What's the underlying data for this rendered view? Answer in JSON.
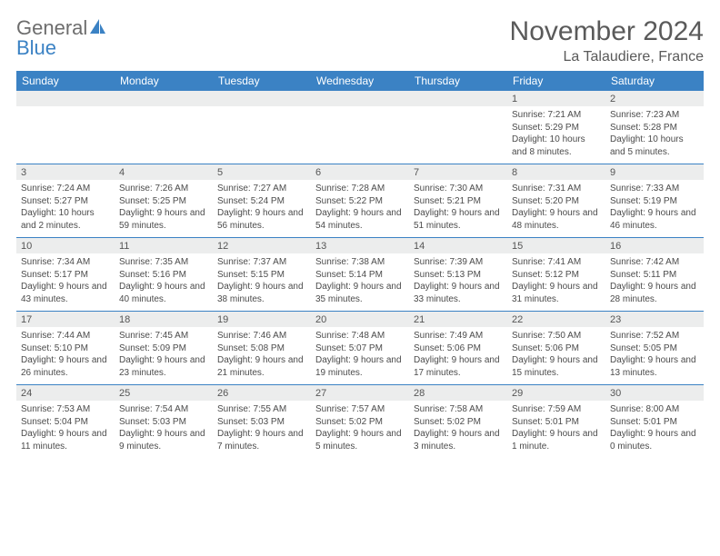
{
  "brand": {
    "word1": "General",
    "word2": "Blue"
  },
  "title": "November 2024",
  "location": "La Talaudiere, France",
  "colors": {
    "header_bg": "#3b82c4",
    "header_fg": "#ffffff",
    "strip_bg": "#eceded",
    "border": "#3b82c4",
    "text": "#4b4b4b",
    "title": "#5a5a5a"
  },
  "day_headers": [
    "Sunday",
    "Monday",
    "Tuesday",
    "Wednesday",
    "Thursday",
    "Friday",
    "Saturday"
  ],
  "weeks": [
    [
      {
        "date": "",
        "sunrise": "",
        "sunset": "",
        "daylight": ""
      },
      {
        "date": "",
        "sunrise": "",
        "sunset": "",
        "daylight": ""
      },
      {
        "date": "",
        "sunrise": "",
        "sunset": "",
        "daylight": ""
      },
      {
        "date": "",
        "sunrise": "",
        "sunset": "",
        "daylight": ""
      },
      {
        "date": "",
        "sunrise": "",
        "sunset": "",
        "daylight": ""
      },
      {
        "date": "1",
        "sunrise": "Sunrise: 7:21 AM",
        "sunset": "Sunset: 5:29 PM",
        "daylight": "Daylight: 10 hours and 8 minutes."
      },
      {
        "date": "2",
        "sunrise": "Sunrise: 7:23 AM",
        "sunset": "Sunset: 5:28 PM",
        "daylight": "Daylight: 10 hours and 5 minutes."
      }
    ],
    [
      {
        "date": "3",
        "sunrise": "Sunrise: 7:24 AM",
        "sunset": "Sunset: 5:27 PM",
        "daylight": "Daylight: 10 hours and 2 minutes."
      },
      {
        "date": "4",
        "sunrise": "Sunrise: 7:26 AM",
        "sunset": "Sunset: 5:25 PM",
        "daylight": "Daylight: 9 hours and 59 minutes."
      },
      {
        "date": "5",
        "sunrise": "Sunrise: 7:27 AM",
        "sunset": "Sunset: 5:24 PM",
        "daylight": "Daylight: 9 hours and 56 minutes."
      },
      {
        "date": "6",
        "sunrise": "Sunrise: 7:28 AM",
        "sunset": "Sunset: 5:22 PM",
        "daylight": "Daylight: 9 hours and 54 minutes."
      },
      {
        "date": "7",
        "sunrise": "Sunrise: 7:30 AM",
        "sunset": "Sunset: 5:21 PM",
        "daylight": "Daylight: 9 hours and 51 minutes."
      },
      {
        "date": "8",
        "sunrise": "Sunrise: 7:31 AM",
        "sunset": "Sunset: 5:20 PM",
        "daylight": "Daylight: 9 hours and 48 minutes."
      },
      {
        "date": "9",
        "sunrise": "Sunrise: 7:33 AM",
        "sunset": "Sunset: 5:19 PM",
        "daylight": "Daylight: 9 hours and 46 minutes."
      }
    ],
    [
      {
        "date": "10",
        "sunrise": "Sunrise: 7:34 AM",
        "sunset": "Sunset: 5:17 PM",
        "daylight": "Daylight: 9 hours and 43 minutes."
      },
      {
        "date": "11",
        "sunrise": "Sunrise: 7:35 AM",
        "sunset": "Sunset: 5:16 PM",
        "daylight": "Daylight: 9 hours and 40 minutes."
      },
      {
        "date": "12",
        "sunrise": "Sunrise: 7:37 AM",
        "sunset": "Sunset: 5:15 PM",
        "daylight": "Daylight: 9 hours and 38 minutes."
      },
      {
        "date": "13",
        "sunrise": "Sunrise: 7:38 AM",
        "sunset": "Sunset: 5:14 PM",
        "daylight": "Daylight: 9 hours and 35 minutes."
      },
      {
        "date": "14",
        "sunrise": "Sunrise: 7:39 AM",
        "sunset": "Sunset: 5:13 PM",
        "daylight": "Daylight: 9 hours and 33 minutes."
      },
      {
        "date": "15",
        "sunrise": "Sunrise: 7:41 AM",
        "sunset": "Sunset: 5:12 PM",
        "daylight": "Daylight: 9 hours and 31 minutes."
      },
      {
        "date": "16",
        "sunrise": "Sunrise: 7:42 AM",
        "sunset": "Sunset: 5:11 PM",
        "daylight": "Daylight: 9 hours and 28 minutes."
      }
    ],
    [
      {
        "date": "17",
        "sunrise": "Sunrise: 7:44 AM",
        "sunset": "Sunset: 5:10 PM",
        "daylight": "Daylight: 9 hours and 26 minutes."
      },
      {
        "date": "18",
        "sunrise": "Sunrise: 7:45 AM",
        "sunset": "Sunset: 5:09 PM",
        "daylight": "Daylight: 9 hours and 23 minutes."
      },
      {
        "date": "19",
        "sunrise": "Sunrise: 7:46 AM",
        "sunset": "Sunset: 5:08 PM",
        "daylight": "Daylight: 9 hours and 21 minutes."
      },
      {
        "date": "20",
        "sunrise": "Sunrise: 7:48 AM",
        "sunset": "Sunset: 5:07 PM",
        "daylight": "Daylight: 9 hours and 19 minutes."
      },
      {
        "date": "21",
        "sunrise": "Sunrise: 7:49 AM",
        "sunset": "Sunset: 5:06 PM",
        "daylight": "Daylight: 9 hours and 17 minutes."
      },
      {
        "date": "22",
        "sunrise": "Sunrise: 7:50 AM",
        "sunset": "Sunset: 5:06 PM",
        "daylight": "Daylight: 9 hours and 15 minutes."
      },
      {
        "date": "23",
        "sunrise": "Sunrise: 7:52 AM",
        "sunset": "Sunset: 5:05 PM",
        "daylight": "Daylight: 9 hours and 13 minutes."
      }
    ],
    [
      {
        "date": "24",
        "sunrise": "Sunrise: 7:53 AM",
        "sunset": "Sunset: 5:04 PM",
        "daylight": "Daylight: 9 hours and 11 minutes."
      },
      {
        "date": "25",
        "sunrise": "Sunrise: 7:54 AM",
        "sunset": "Sunset: 5:03 PM",
        "daylight": "Daylight: 9 hours and 9 minutes."
      },
      {
        "date": "26",
        "sunrise": "Sunrise: 7:55 AM",
        "sunset": "Sunset: 5:03 PM",
        "daylight": "Daylight: 9 hours and 7 minutes."
      },
      {
        "date": "27",
        "sunrise": "Sunrise: 7:57 AM",
        "sunset": "Sunset: 5:02 PM",
        "daylight": "Daylight: 9 hours and 5 minutes."
      },
      {
        "date": "28",
        "sunrise": "Sunrise: 7:58 AM",
        "sunset": "Sunset: 5:02 PM",
        "daylight": "Daylight: 9 hours and 3 minutes."
      },
      {
        "date": "29",
        "sunrise": "Sunrise: 7:59 AM",
        "sunset": "Sunset: 5:01 PM",
        "daylight": "Daylight: 9 hours and 1 minute."
      },
      {
        "date": "30",
        "sunrise": "Sunrise: 8:00 AM",
        "sunset": "Sunset: 5:01 PM",
        "daylight": "Daylight: 9 hours and 0 minutes."
      }
    ]
  ]
}
